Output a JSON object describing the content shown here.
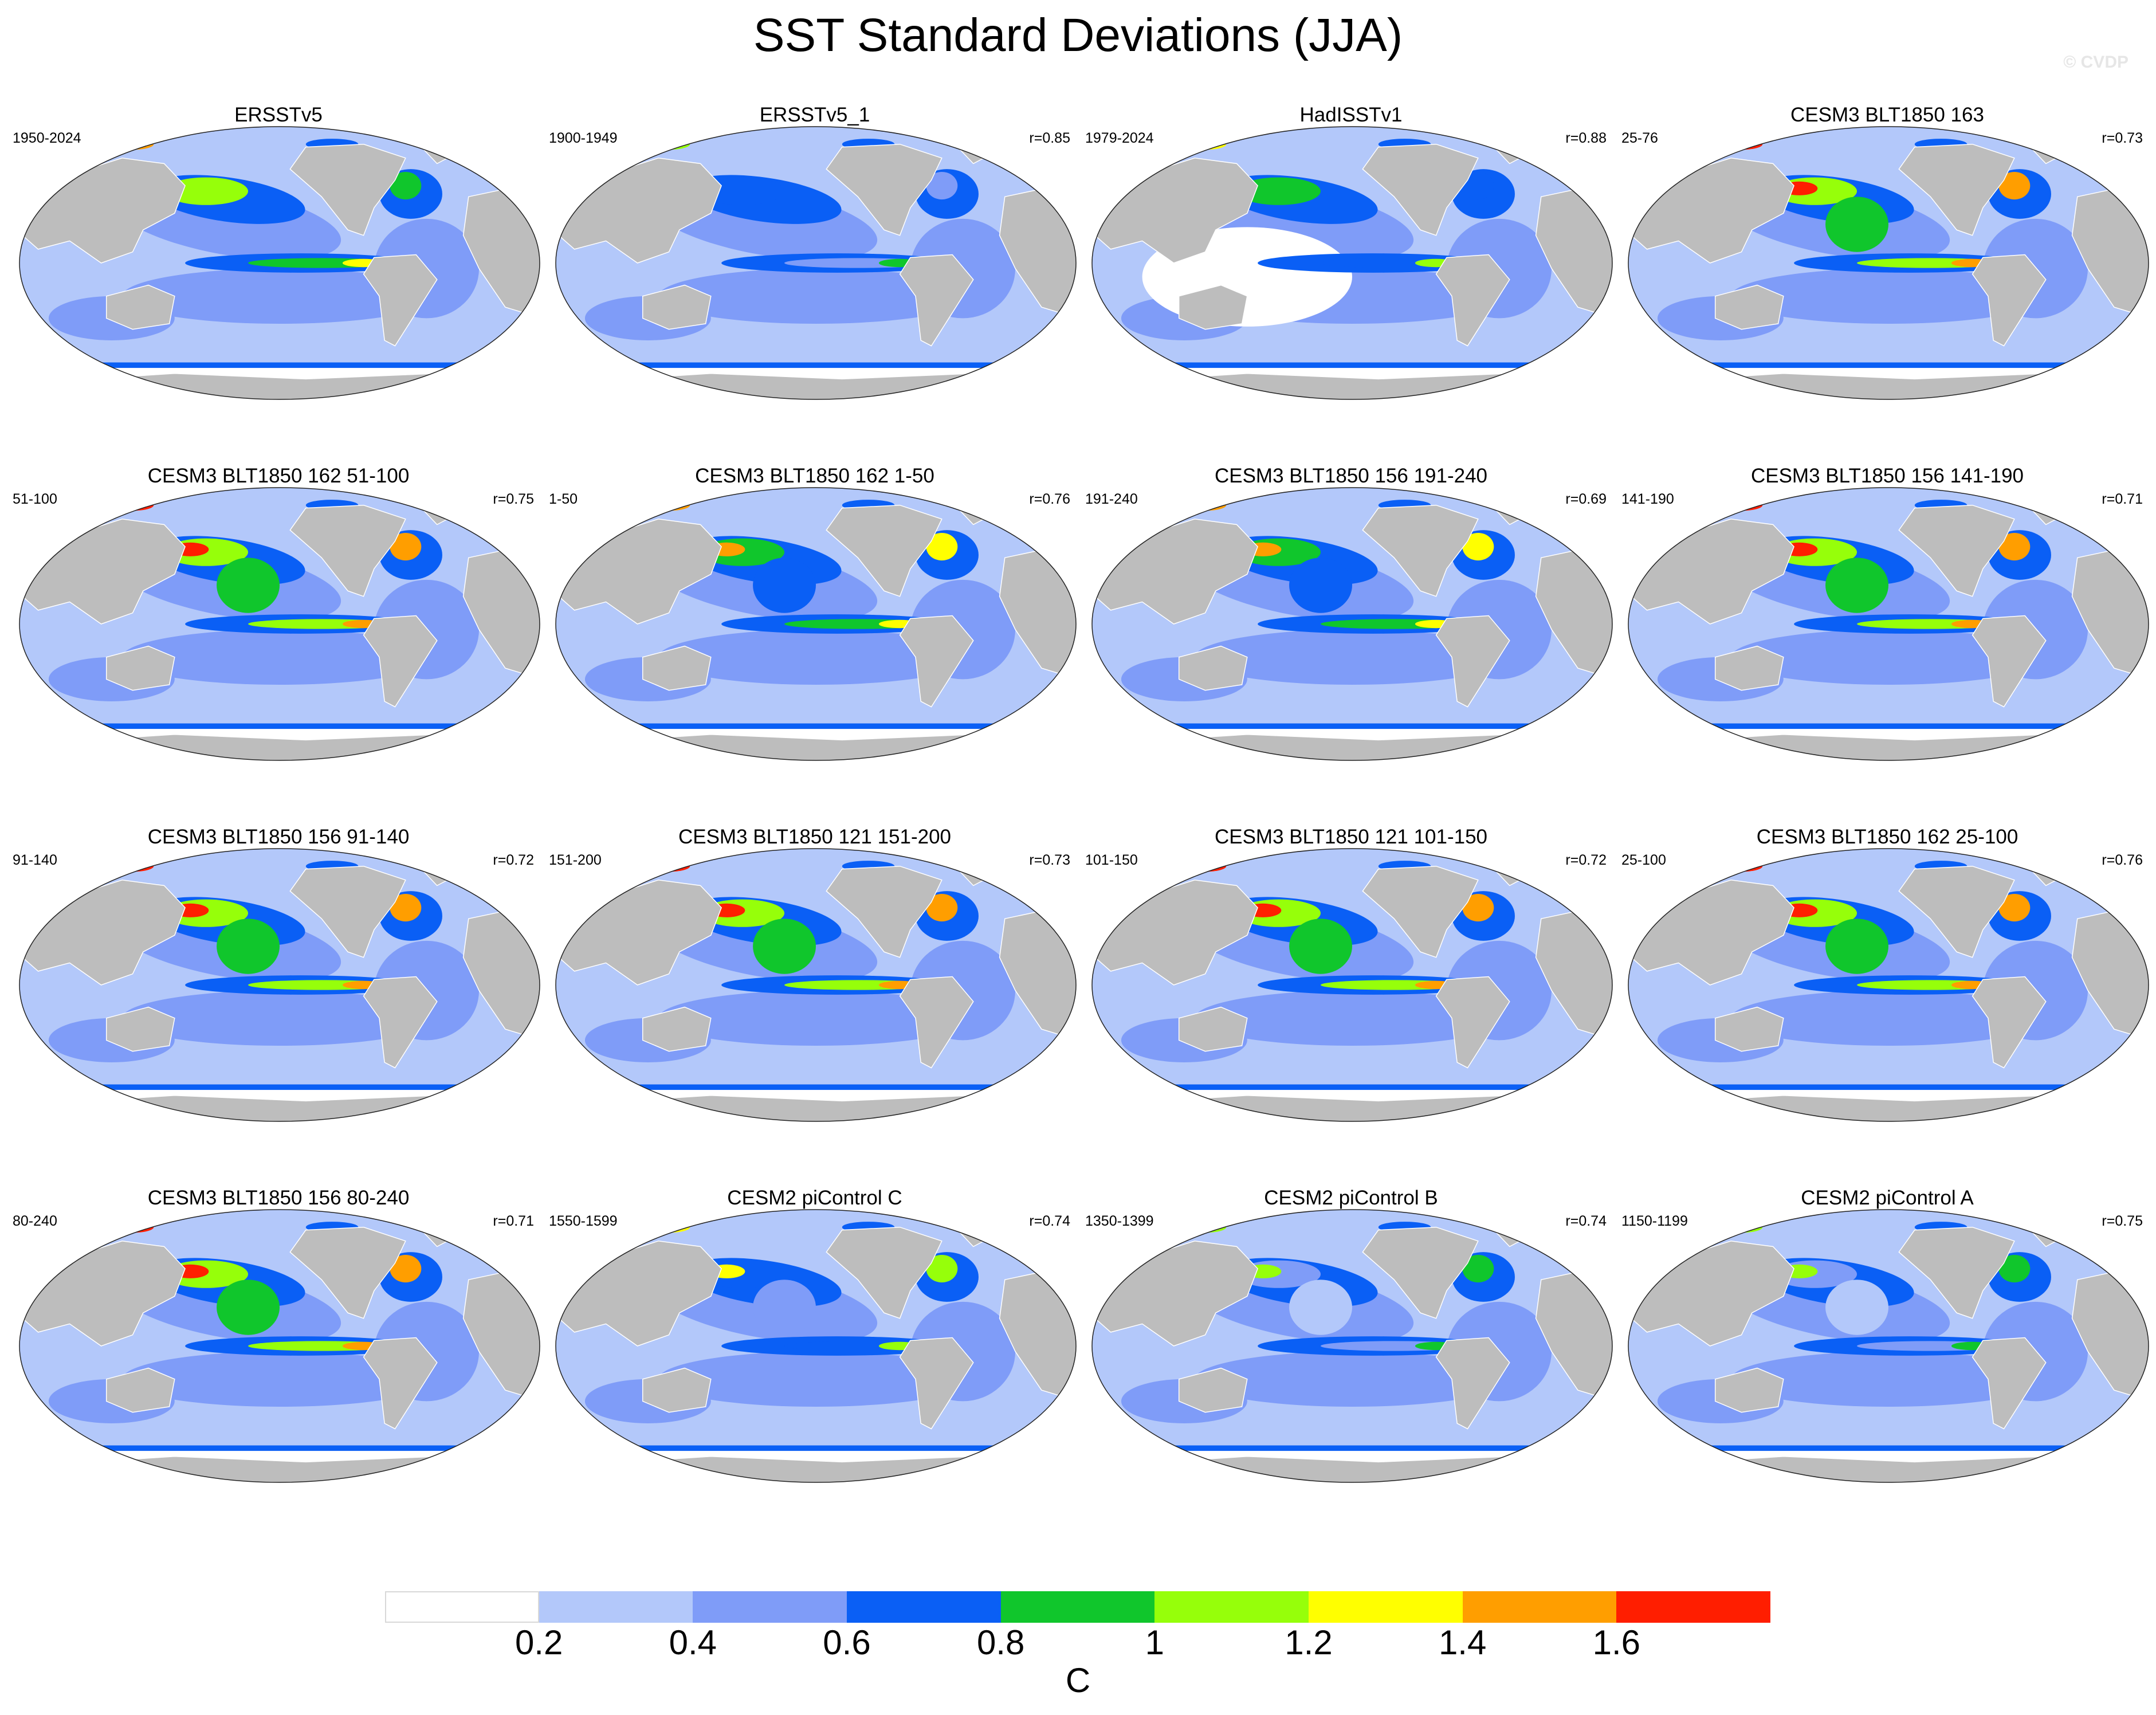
{
  "title": "SST Standard Deviations (JJA)",
  "copyright": "© CVDP",
  "panels": [
    {
      "name": "ERSSTv5",
      "period": "1950-2024",
      "r": ""
    },
    {
      "name": "ERSSTv5_1",
      "period": "1900-1949",
      "r": "r=0.85"
    },
    {
      "name": "HadISSTv1",
      "period": "1979-2024",
      "r": "r=0.88"
    },
    {
      "name": "CESM3 BLT1850 163",
      "period": "25-76",
      "r": "r=0.73"
    },
    {
      "name": "CESM3 BLT1850 162 51-100",
      "period": "51-100",
      "r": "r=0.75"
    },
    {
      "name": "CESM3 BLT1850 162 1-50",
      "period": "1-50",
      "r": "r=0.76"
    },
    {
      "name": "CESM3 BLT1850 156 191-240",
      "period": "191-240",
      "r": "r=0.69"
    },
    {
      "name": "CESM3 BLT1850 156 141-190",
      "period": "141-190",
      "r": "r=0.71"
    },
    {
      "name": "CESM3 BLT1850 156 91-140",
      "period": "91-140",
      "r": "r=0.72"
    },
    {
      "name": "CESM3 BLT1850 121 151-200",
      "period": "151-200",
      "r": "r=0.73"
    },
    {
      "name": "CESM3 BLT1850 121 101-150",
      "period": "101-150",
      "r": "r=0.72"
    },
    {
      "name": "CESM3 BLT1850 162 25-100",
      "period": "25-100",
      "r": "r=0.76"
    },
    {
      "name": "CESM3 BLT1850 156 80-240",
      "period": "80-240",
      "r": "r=0.71"
    },
    {
      "name": "CESM2 piControl C",
      "period": "1550-1599",
      "r": "r=0.74"
    },
    {
      "name": "CESM2 piControl B",
      "period": "1350-1399",
      "r": "r=0.74"
    },
    {
      "name": "CESM2 piControl A",
      "period": "1150-1199",
      "r": "r=0.75"
    }
  ],
  "colorbar": {
    "unit": "C",
    "ticks": [
      "0.2",
      "0.4",
      "0.6",
      "0.8",
      "1",
      "1.2",
      "1.4",
      "1.6"
    ],
    "colors": [
      "#ffffff",
      "#b3c8fa",
      "#7f9cf8",
      "#0a5ff5",
      "#10c62c",
      "#96ff0a",
      "#ffff00",
      "#ff9e00",
      "#ff1e00"
    ]
  },
  "land_color": "#bdbdbd"
}
